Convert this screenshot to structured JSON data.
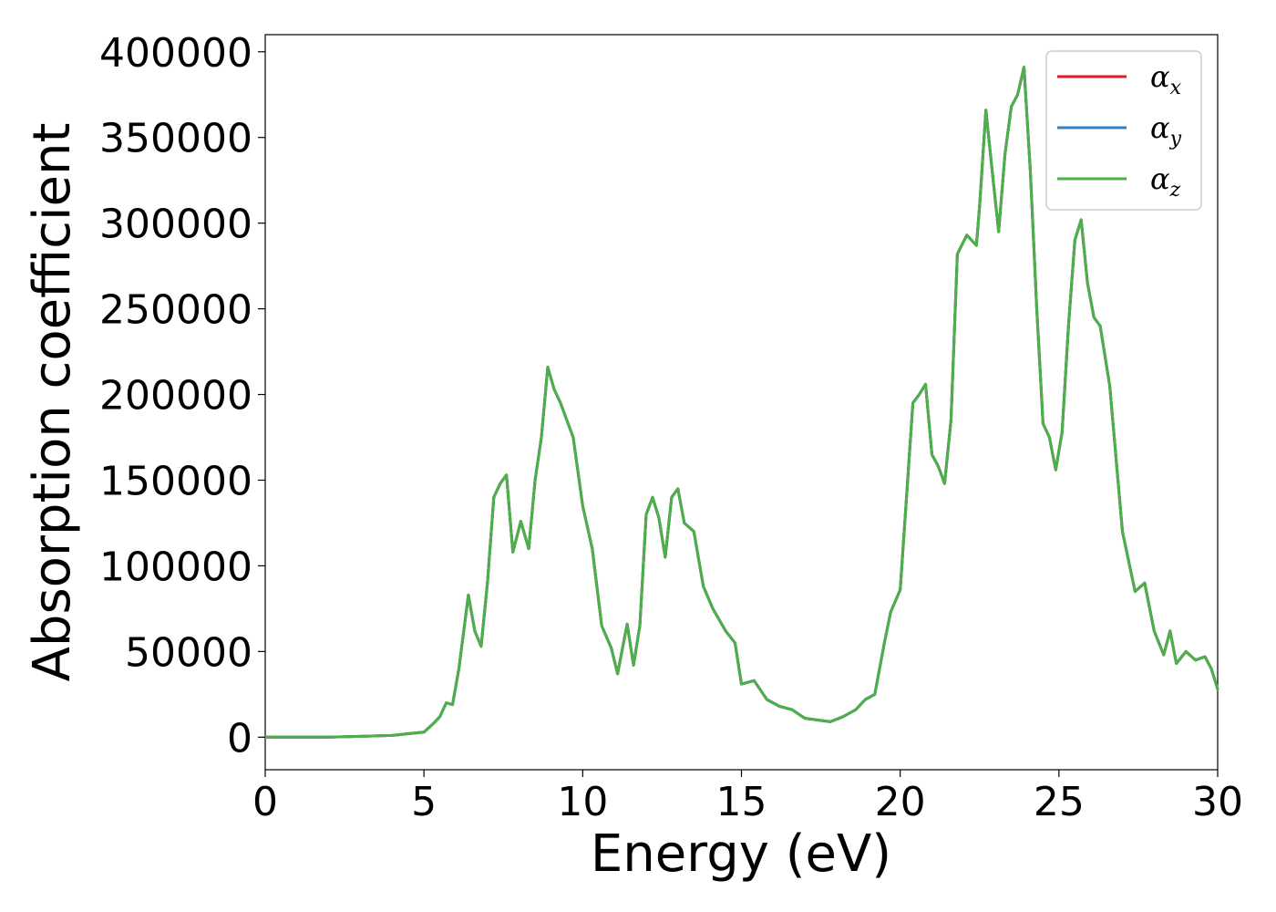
{
  "chart_data": {
    "type": "line",
    "xlabel": "Energy (eV)",
    "ylabel": "Absorption coefficient",
    "xlim": [
      0,
      30
    ],
    "ylim": [
      -19000,
      410000
    ],
    "xticks": [
      "0",
      "5",
      "10",
      "15",
      "20",
      "25",
      "30"
    ],
    "yticks": [
      "0",
      "50000",
      "100000",
      "150000",
      "200000",
      "250000",
      "300000",
      "350000",
      "400000"
    ],
    "grid": false,
    "legend_position": "top-right",
    "series": [
      {
        "name": "αx",
        "symbol": "α",
        "subscript": "x",
        "color": "#e41a1c"
      },
      {
        "name": "αy",
        "symbol": "α",
        "subscript": "y",
        "color": "#377eb8"
      },
      {
        "name": "αz",
        "symbol": "α",
        "subscript": "z",
        "color": "#4daf4a"
      }
    ],
    "x": [
      0,
      1,
      2,
      3,
      4,
      4.5,
      5,
      5.3,
      5.5,
      5.7,
      5.9,
      6.1,
      6.4,
      6.6,
      6.8,
      7.0,
      7.2,
      7.4,
      7.6,
      7.8,
      8.05,
      8.3,
      8.5,
      8.7,
      8.9,
      9.1,
      9.3,
      9.5,
      9.7,
      10.0,
      10.3,
      10.6,
      10.9,
      11.1,
      11.4,
      11.6,
      11.8,
      12.0,
      12.2,
      12.4,
      12.6,
      12.8,
      13.0,
      13.2,
      13.5,
      13.8,
      14.1,
      14.5,
      14.8,
      15.0,
      15.4,
      15.8,
      16.2,
      16.6,
      17.0,
      17.4,
      17.8,
      18.2,
      18.6,
      18.9,
      19.2,
      19.5,
      19.7,
      20.0,
      20.2,
      20.4,
      20.6,
      20.8,
      21.0,
      21.2,
      21.4,
      21.6,
      21.8,
      22.1,
      22.4,
      22.5,
      22.7,
      22.9,
      23.1,
      23.3,
      23.5,
      23.7,
      23.9,
      24.1,
      24.3,
      24.5,
      24.7,
      24.9,
      25.1,
      25.3,
      25.5,
      25.7,
      25.9,
      26.1,
      26.3,
      26.6,
      27.0,
      27.4,
      27.7,
      28.0,
      28.3,
      28.5,
      28.7,
      29.0,
      29.3,
      29.6,
      29.8,
      30.0
    ],
    "y": [
      0,
      0,
      0,
      500,
      1000,
      2000,
      3000,
      8000,
      12000,
      20000,
      19000,
      40000,
      83000,
      62000,
      53000,
      90000,
      140000,
      148000,
      153000,
      108000,
      126000,
      110000,
      150000,
      175000,
      216000,
      203000,
      195000,
      185000,
      175000,
      135000,
      110000,
      65000,
      52000,
      37000,
      66000,
      42000,
      65000,
      130000,
      140000,
      128000,
      105000,
      140000,
      145000,
      125000,
      120000,
      88000,
      75000,
      62000,
      55000,
      31000,
      33000,
      22000,
      18000,
      16000,
      11000,
      10000,
      9000,
      12000,
      16000,
      22000,
      25000,
      55000,
      73000,
      86000,
      140000,
      195000,
      200000,
      206000,
      165000,
      158000,
      148000,
      185000,
      282000,
      293000,
      287000,
      310000,
      366000,
      330000,
      295000,
      340000,
      368000,
      375000,
      391000,
      330000,
      250000,
      183000,
      175000,
      156000,
      178000,
      240000,
      290000,
      302000,
      265000,
      245000,
      240000,
      205000,
      120000,
      85000,
      90000,
      62000,
      48000,
      62000,
      43000,
      50000,
      45000,
      47000,
      40000,
      28000
    ]
  }
}
